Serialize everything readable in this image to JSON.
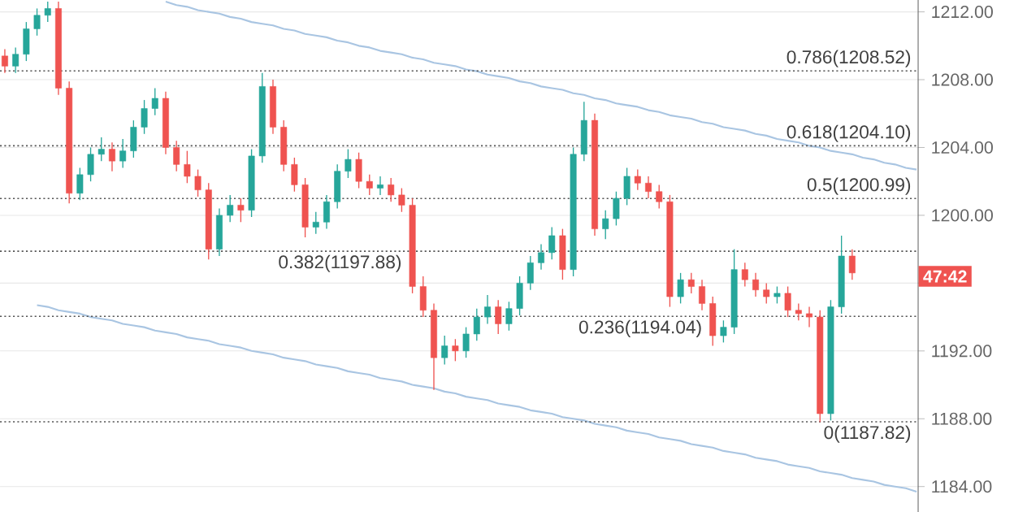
{
  "chart_data": {
    "type": "candlestick",
    "categories": [
      null,
      null,
      null,
      null,
      null,
      null,
      null,
      null,
      null,
      null,
      null,
      null,
      null,
      null,
      null,
      null,
      null,
      null,
      null,
      null,
      null,
      null,
      null,
      null,
      null,
      null,
      null,
      null,
      null,
      null,
      null,
      null,
      null,
      null,
      null,
      null,
      null,
      null,
      null,
      null,
      null,
      null,
      null,
      null,
      null,
      null,
      null,
      null,
      null,
      null,
      null,
      null,
      null,
      null,
      null,
      null,
      null,
      null,
      null,
      null,
      null,
      null,
      null,
      null,
      null,
      null,
      null,
      null,
      null,
      null,
      null,
      null,
      null,
      null,
      null,
      null,
      null,
      null,
      null,
      null,
      null,
      null,
      null,
      null,
      null,
      null
    ],
    "ohlc": [
      [
        1209.4,
        1209.8,
        1208.4,
        1208.8
      ],
      [
        1208.8,
        1209.9,
        1208.4,
        1209.5
      ],
      [
        1209.5,
        1211.4,
        1209.1,
        1211.0
      ],
      [
        1211.0,
        1212.2,
        1210.6,
        1211.8
      ],
      [
        1211.8,
        1212.6,
        1211.4,
        1212.2
      ],
      [
        1212.2,
        1212.6,
        1207.1,
        1207.5
      ],
      [
        1207.5,
        1207.9,
        1200.7,
        1201.3
      ],
      [
        1201.3,
        1202.8,
        1200.9,
        1202.4
      ],
      [
        1202.4,
        1204.0,
        1202.0,
        1203.6
      ],
      [
        1203.6,
        1204.6,
        1203.2,
        1203.9
      ],
      [
        1203.9,
        1204.3,
        1202.6,
        1203.2
      ],
      [
        1203.2,
        1204.5,
        1202.8,
        1203.8
      ],
      [
        1203.8,
        1205.6,
        1203.4,
        1205.2
      ],
      [
        1205.2,
        1206.8,
        1204.8,
        1206.3
      ],
      [
        1206.3,
        1207.5,
        1205.9,
        1206.9
      ],
      [
        1206.9,
        1207.3,
        1203.6,
        1204.0
      ],
      [
        1204.0,
        1204.4,
        1202.6,
        1203.0
      ],
      [
        1203.0,
        1203.8,
        1201.9,
        1202.3
      ],
      [
        1202.3,
        1202.7,
        1201.1,
        1201.5
      ],
      [
        1201.5,
        1201.9,
        1197.4,
        1198.0
      ],
      [
        1198.0,
        1200.4,
        1197.6,
        1200.0
      ],
      [
        1200.0,
        1201.2,
        1199.6,
        1200.6
      ],
      [
        1200.6,
        1201.0,
        1199.6,
        1200.3
      ],
      [
        1200.3,
        1203.9,
        1199.9,
        1203.5
      ],
      [
        1203.5,
        1208.4,
        1203.1,
        1207.6
      ],
      [
        1207.6,
        1208.0,
        1204.8,
        1205.2
      ],
      [
        1205.2,
        1205.6,
        1202.6,
        1203.0
      ],
      [
        1203.0,
        1203.4,
        1201.4,
        1201.8
      ],
      [
        1201.8,
        1202.2,
        1198.7,
        1199.3
      ],
      [
        1199.3,
        1200.2,
        1198.9,
        1199.6
      ],
      [
        1199.6,
        1201.2,
        1199.2,
        1200.8
      ],
      [
        1200.8,
        1203.0,
        1200.4,
        1202.6
      ],
      [
        1202.6,
        1203.9,
        1202.2,
        1203.3
      ],
      [
        1203.3,
        1203.7,
        1201.6,
        1202.0
      ],
      [
        1202.0,
        1202.4,
        1201.2,
        1201.6
      ],
      [
        1201.6,
        1202.3,
        1201.2,
        1201.8
      ],
      [
        1201.8,
        1202.2,
        1200.8,
        1201.2
      ],
      [
        1201.2,
        1201.6,
        1200.2,
        1200.6
      ],
      [
        1200.6,
        1201.0,
        1195.4,
        1195.8
      ],
      [
        1195.8,
        1196.4,
        1194.0,
        1194.4
      ],
      [
        1194.4,
        1194.8,
        1189.7,
        1191.6
      ],
      [
        1191.6,
        1192.9,
        1191.2,
        1192.3
      ],
      [
        1192.3,
        1192.7,
        1191.4,
        1192.0
      ],
      [
        1192.0,
        1193.4,
        1191.6,
        1193.0
      ],
      [
        1193.0,
        1194.5,
        1192.6,
        1194.0
      ],
      [
        1194.0,
        1195.3,
        1193.6,
        1194.6
      ],
      [
        1194.6,
        1195.0,
        1193.0,
        1193.6
      ],
      [
        1193.6,
        1194.9,
        1193.2,
        1194.5
      ],
      [
        1194.5,
        1196.4,
        1194.1,
        1196.0
      ],
      [
        1196.0,
        1197.6,
        1195.6,
        1197.2
      ],
      [
        1197.2,
        1198.3,
        1196.8,
        1197.8
      ],
      [
        1197.8,
        1199.3,
        1197.4,
        1198.8
      ],
      [
        1198.8,
        1199.2,
        1196.2,
        1196.8
      ],
      [
        1196.8,
        1204.0,
        1196.4,
        1203.6
      ],
      [
        1203.6,
        1206.7,
        1203.2,
        1205.6
      ],
      [
        1205.6,
        1206.0,
        1198.8,
        1199.2
      ],
      [
        1199.2,
        1200.3,
        1198.6,
        1199.8
      ],
      [
        1199.8,
        1201.4,
        1199.4,
        1201.0
      ],
      [
        1201.0,
        1202.8,
        1200.6,
        1202.3
      ],
      [
        1202.3,
        1202.7,
        1201.5,
        1201.9
      ],
      [
        1201.9,
        1202.3,
        1201.0,
        1201.4
      ],
      [
        1201.4,
        1201.8,
        1200.4,
        1200.8
      ],
      [
        1200.8,
        1201.2,
        1194.6,
        1195.2
      ],
      [
        1195.2,
        1196.6,
        1194.8,
        1196.2
      ],
      [
        1196.2,
        1196.6,
        1195.4,
        1195.8
      ],
      [
        1195.8,
        1196.2,
        1194.4,
        1194.8
      ],
      [
        1194.8,
        1195.2,
        1192.3,
        1192.9
      ],
      [
        1192.9,
        1193.8,
        1192.5,
        1193.4
      ],
      [
        1193.4,
        1198.0,
        1193.0,
        1196.8
      ],
      [
        1196.8,
        1197.2,
        1195.8,
        1196.2
      ],
      [
        1196.2,
        1196.6,
        1195.2,
        1195.6
      ],
      [
        1195.6,
        1196.0,
        1194.8,
        1195.2
      ],
      [
        1195.2,
        1195.8,
        1194.8,
        1195.4
      ],
      [
        1195.4,
        1195.8,
        1194.0,
        1194.4
      ],
      [
        1194.4,
        1194.8,
        1193.8,
        1194.2
      ],
      [
        1194.2,
        1194.6,
        1193.4,
        1194.0
      ],
      [
        1194.0,
        1194.4,
        1187.8,
        1188.3
      ],
      [
        1188.3,
        1195.0,
        1187.9,
        1194.6
      ],
      [
        1194.6,
        1198.8,
        1194.2,
        1197.6
      ],
      [
        1197.6,
        1198.0,
        1196.2,
        1196.6
      ],
      null,
      null,
      null,
      null,
      null,
      null
    ],
    "series": [
      {
        "type": "line",
        "color": "#a9c5e2",
        "values": [
          null,
          null,
          null,
          null,
          null,
          null,
          null,
          null,
          null,
          null,
          null,
          null,
          null,
          null,
          null,
          1212.6,
          1212.4,
          1212.3,
          1212.1,
          1212.0,
          1211.9,
          1211.7,
          1211.6,
          1211.4,
          1211.3,
          1211.2,
          1211.0,
          1210.9,
          1210.7,
          1210.6,
          1210.5,
          1210.3,
          1210.2,
          1210.0,
          1209.9,
          1209.7,
          1209.6,
          1209.5,
          1209.3,
          1209.2,
          1209.0,
          1208.9,
          1208.8,
          1208.6,
          1208.5,
          1208.3,
          1208.2,
          1208.1,
          1207.9,
          1207.8,
          1207.6,
          1207.5,
          1207.4,
          1207.2,
          1207.1,
          1206.9,
          1206.8,
          1206.6,
          1206.5,
          1206.4,
          1206.2,
          1206.1,
          1205.9,
          1205.8,
          1205.7,
          1205.5,
          1205.4,
          1205.2,
          1205.1,
          1205.0,
          1204.8,
          1204.7,
          1204.5,
          1204.4,
          1204.3,
          1204.1,
          1204.0,
          1203.8,
          1203.7,
          1203.6,
          1203.4,
          1203.3,
          1203.1,
          1203.0,
          1202.8,
          1202.7
        ]
      },
      {
        "type": "line",
        "color": "#a9c5e2",
        "values": [
          null,
          null,
          null,
          1194.7,
          1194.6,
          1194.4,
          1194.3,
          1194.2,
          1194.0,
          1193.9,
          1193.8,
          1193.6,
          1193.5,
          1193.4,
          1193.2,
          1193.1,
          1193.0,
          1192.8,
          1192.7,
          1192.6,
          1192.4,
          1192.3,
          1192.2,
          1192.0,
          1191.9,
          1191.8,
          1191.6,
          1191.5,
          1191.4,
          1191.2,
          1191.1,
          1191.0,
          1190.8,
          1190.7,
          1190.6,
          1190.4,
          1190.3,
          1190.2,
          1190.0,
          1189.9,
          1189.8,
          1189.6,
          1189.5,
          1189.3,
          1189.2,
          1189.1,
          1188.9,
          1188.8,
          1188.7,
          1188.5,
          1188.4,
          1188.3,
          1188.1,
          1188.0,
          1187.9,
          1187.7,
          1187.6,
          1187.5,
          1187.3,
          1187.2,
          1187.1,
          1186.9,
          1186.8,
          1186.7,
          1186.5,
          1186.4,
          1186.3,
          1186.1,
          1186.0,
          1185.9,
          1185.7,
          1185.6,
          1185.5,
          1185.3,
          1185.2,
          1185.1,
          1184.9,
          1184.8,
          1184.7,
          1184.5,
          1184.4,
          1184.3,
          1184.1,
          1184.0,
          1183.9,
          1183.7
        ]
      }
    ],
    "ylim": [
      1182.5,
      1212.7
    ],
    "yticks": [
      {
        "value": 1184,
        "label": "1184.00"
      },
      {
        "value": 1188,
        "label": "1188.00"
      },
      {
        "value": 1192,
        "label": "1192.00"
      },
      {
        "value": 1196,
        "label": null
      },
      {
        "value": 1200,
        "label": "1200.00"
      },
      {
        "value": 1204,
        "label": "1204.00"
      },
      {
        "value": 1208,
        "label": "1208.00"
      },
      {
        "value": 1212,
        "label": "1212.00"
      }
    ],
    "ref_lines": [
      {
        "axis": "y",
        "value": 1208.52,
        "label": "0.786(1208.52)",
        "color": "#555555",
        "line_style": "dotted"
      },
      {
        "axis": "y",
        "value": 1204.1,
        "label": "0.618(1204.10)",
        "color": "#555555",
        "line_style": "dotted"
      },
      {
        "axis": "y",
        "value": 1200.99,
        "label": "0.5(1200.99)",
        "color": "#555555",
        "line_style": "dotted"
      },
      {
        "axis": "y",
        "value": 1197.88,
        "label": "0.382(1197.88)",
        "color": "#555555",
        "line_style": "dotted"
      },
      {
        "axis": "y",
        "value": 1194.04,
        "label": "0.236(1194.04)",
        "color": "#555555",
        "line_style": "dotted"
      },
      {
        "axis": "y",
        "value": 1187.82,
        "label": "0(1187.82)",
        "color": "#555555",
        "line_style": "dotted"
      }
    ],
    "annotations": [
      {
        "text": "47:42",
        "y": 1196.4
      }
    ],
    "grid": "y",
    "tick_labels": "y"
  }
}
